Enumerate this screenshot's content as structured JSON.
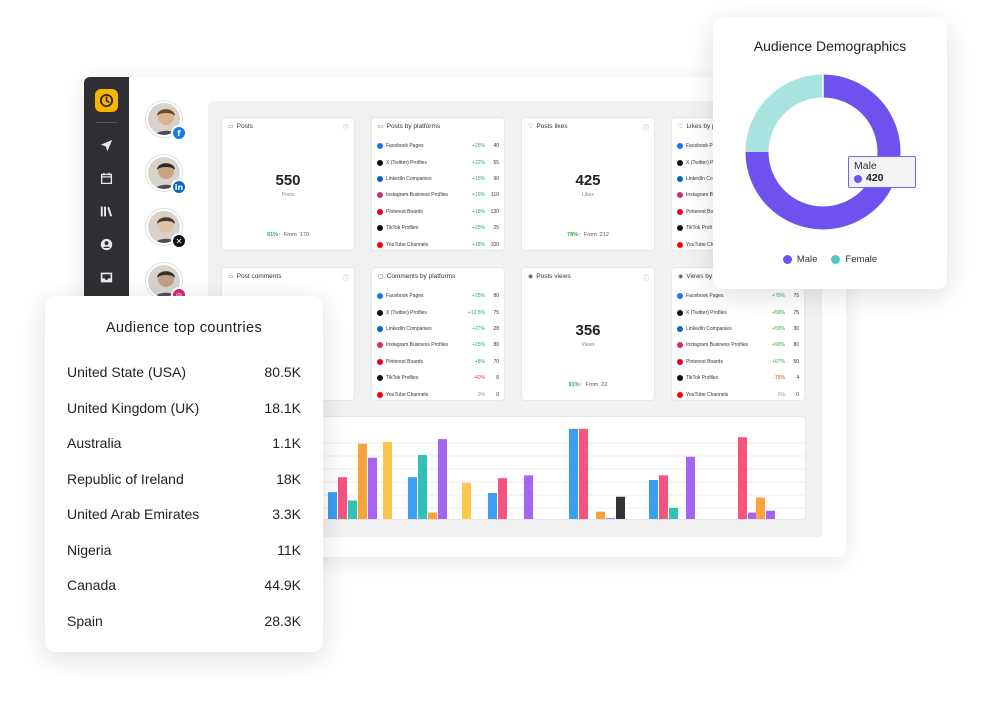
{
  "app": {
    "profiles": [
      {
        "network": "Facebook",
        "badge_color": "#1877f2",
        "badge_glyph": "f",
        "skin": "#d9b38c",
        "hair": "#6b4a2f"
      },
      {
        "network": "LinkedIn",
        "badge_color": "#0a66c2",
        "badge_glyph": "in",
        "skin": "#c9a27e",
        "hair": "#2b2b2b"
      },
      {
        "network": "X",
        "badge_color": "#111111",
        "badge_glyph": "✕",
        "skin": "#e0c3a5",
        "hair": "#4a3a2e"
      },
      {
        "network": "Instagram",
        "badge_color": "#d62976",
        "badge_glyph": "◎",
        "skin": "#bfa088",
        "hair": "#333333"
      }
    ],
    "sidebar_icons": [
      "send-icon",
      "calendar-icon",
      "library-icon",
      "user-circle-icon",
      "inbox-icon"
    ],
    "cards": {
      "posts": {
        "title": "Posts",
        "value": "550",
        "sub": "Posts",
        "pct": "91%↑",
        "from_label": "From",
        "from_value": "170"
      },
      "posts_likes": {
        "title": "Posts likes",
        "value": "425",
        "sub": "Likes",
        "pct": "78%↑",
        "from_label": "From",
        "from_value": "212"
      },
      "post_comments": {
        "title": "Post comments"
      },
      "posts_views": {
        "title": "Posts views",
        "value": "356",
        "sub": "Views",
        "pct": "91%↑",
        "from_label": "From",
        "from_value": "22"
      },
      "posts_by_platforms": {
        "title": "Posts by platforms",
        "rows": [
          {
            "name": "Facebook Pages",
            "change": "+25%",
            "value": "40",
            "color": "#1877f2"
          },
          {
            "name": "X (Twitter) Profiles",
            "change": "+22%",
            "value": "55",
            "color": "#111111"
          },
          {
            "name": "LinkedIn Companies",
            "change": "+15%",
            "value": "90",
            "color": "#0a66c2"
          },
          {
            "name": "Instagram Business Profiles",
            "change": "+16%",
            "value": "110",
            "color": "#d62976"
          },
          {
            "name": "Pinterest Boards",
            "change": "+18%",
            "value": "130",
            "color": "#e60023"
          },
          {
            "name": "TikTok Profiles",
            "change": "+25%",
            "value": "25",
            "color": "#111111"
          },
          {
            "name": "YouTube Channels",
            "change": "+18%",
            "value": "100",
            "color": "#ff0000"
          }
        ]
      },
      "comments_by_platforms": {
        "title": "Comments by platforms",
        "rows": [
          {
            "name": "Facebook Pages",
            "change": "+25%",
            "value": "80",
            "color": "#1877f2"
          },
          {
            "name": "X (Twitter) Profiles",
            "change": "+12.5%",
            "value": "75",
            "color": "#111111"
          },
          {
            "name": "LinkedIn Companies",
            "change": "+27%",
            "value": "28",
            "color": "#0a66c2"
          },
          {
            "name": "Instagram Business Profiles",
            "change": "+25%",
            "value": "80",
            "color": "#d62976"
          },
          {
            "name": "Pinterest Boards",
            "change": "+8%",
            "value": "70",
            "color": "#e60023"
          },
          {
            "name": "TikTok Profiles",
            "change": "-40%",
            "value": "8",
            "color": "#111111"
          },
          {
            "name": "YouTube Channels",
            "change": "0%",
            "value": "0",
            "color": "#ff0000"
          }
        ]
      },
      "likes_by_platforms": {
        "title": "Likes by p",
        "rows": [
          {
            "name": "Facebook P",
            "color": "#1877f2"
          },
          {
            "name": "X (Twitter) P",
            "color": "#111111"
          },
          {
            "name": "LinkedIn Co",
            "color": "#0a66c2"
          },
          {
            "name": "Instagram Bu",
            "color": "#d62976"
          },
          {
            "name": "Pinterest Boa",
            "color": "#e60023"
          },
          {
            "name": "TikTok Profi",
            "color": "#111111"
          },
          {
            "name": "YouTube Ch",
            "color": "#ff0000"
          }
        ]
      },
      "views_by_platforms": {
        "title": "Views by",
        "rows": [
          {
            "name": "Facebook Pages",
            "change": "+75%",
            "value": "75",
            "color": "#1877f2"
          },
          {
            "name": "X (Twitter) Profiles",
            "change": "+50%",
            "value": "75",
            "color": "#111111"
          },
          {
            "name": "LinkedIn Companies",
            "change": "+50%",
            "value": "30",
            "color": "#0a66c2"
          },
          {
            "name": "Instagram Business Profiles",
            "change": "+90%",
            "value": "80",
            "color": "#d62976"
          },
          {
            "name": "Pinterest Boards",
            "change": "+67%",
            "value": "50",
            "color": "#e60023"
          },
          {
            "name": "TikTok Profiles",
            "change": "-75%",
            "value": "4",
            "color": "#111111"
          },
          {
            "name": "YouTube Channels",
            "change": "0%",
            "value": "0",
            "color": "#ff0000"
          }
        ]
      }
    },
    "bar_chart": {
      "colors": [
        "#3b9ef0",
        "#f6537e",
        "#2fc2b5",
        "#f7a23b",
        "#a466f2",
        "#fcc64f",
        "#333333"
      ],
      "groups": [
        {
          "values": [
            0.3,
            0.46,
            0.21,
            0.82,
            0.67
          ],
          "colors": [
            0,
            1,
            2,
            3,
            4
          ]
        },
        {
          "values": [
            0.84
          ],
          "colors": [
            5
          ]
        },
        {
          "values": [
            0.46,
            0.7,
            0.08,
            0.87
          ],
          "colors": [
            0,
            2,
            3,
            4
          ]
        },
        {
          "values": [
            0.4
          ],
          "colors": [
            5
          ]
        },
        {
          "values": [
            0.29,
            0.45
          ],
          "colors": [
            0,
            1
          ]
        },
        {
          "values": [
            0.48
          ],
          "colors": [
            4
          ]
        },
        {
          "values": [
            0.98,
            0.98
          ],
          "colors": [
            0,
            1
          ]
        },
        {
          "values": [
            0.09,
            0.02,
            0.25
          ],
          "colors": [
            3,
            4,
            6
          ]
        },
        {
          "values": [
            0.43,
            0.48,
            0.13
          ],
          "colors": [
            0,
            1,
            2
          ]
        },
        {
          "values": [
            0.68
          ],
          "colors": [
            4
          ]
        },
        {
          "values": [
            0.89,
            0.08
          ],
          "colors": [
            1,
            4
          ]
        },
        {
          "values": [
            0.24,
            0.1
          ],
          "colors": [
            3,
            4
          ]
        }
      ]
    }
  },
  "demographics": {
    "title": "Audience Demographics",
    "tooltip": {
      "label": "Male",
      "value": "420"
    },
    "legend": [
      {
        "name": "Male",
        "color": "#6f52ed"
      },
      {
        "name": "Female",
        "color": "#4ec9c4"
      }
    ],
    "chart_data": {
      "type": "pie",
      "categories": [
        "Male",
        "Female"
      ],
      "values": [
        0.75,
        0.25
      ]
    }
  },
  "countries": {
    "title": "Audience top countries",
    "rows": [
      {
        "name": "United State (USA)",
        "value": "80.5K"
      },
      {
        "name": "United Kingdom (UK)",
        "value": "18.1K"
      },
      {
        "name": "Australia",
        "value": "1.1K"
      },
      {
        "name": "Republic of Ireland",
        "value": "18K"
      },
      {
        "name": "United Arab Emirates",
        "value": "3.3K"
      },
      {
        "name": "Nigeria",
        "value": "11K"
      },
      {
        "name": "Canada",
        "value": "44.9K"
      },
      {
        "name": "Spain",
        "value": "28.3K"
      }
    ]
  }
}
